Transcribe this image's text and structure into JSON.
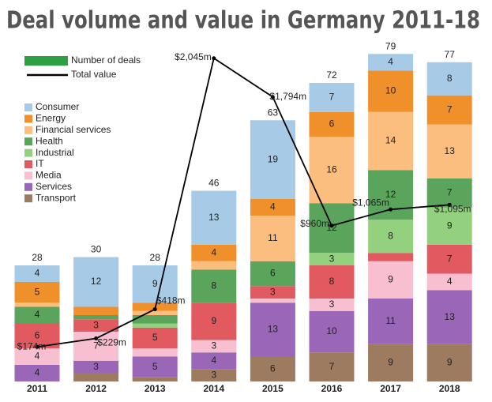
{
  "chart_data": {
    "type": "stacked-bar-line",
    "title": "Deal volume and value in Germany 2011-18",
    "bar_legend_label": "Number of deals",
    "categories": [
      "2011",
      "2012",
      "2013",
      "2014",
      "2015",
      "2016",
      "2017",
      "2018"
    ],
    "ylim": [
      0,
      80
    ],
    "y2lim": [
      -50,
      2100
    ],
    "totals": [
      28,
      30,
      28,
      46,
      63,
      72,
      79,
      77
    ],
    "series": [
      {
        "name": "Transport",
        "color": "#9c7b61",
        "values": [
          0,
          2,
          1,
          3,
          6,
          7,
          9,
          9
        ]
      },
      {
        "name": "Services",
        "color": "#9a66b8",
        "values": [
          4,
          3,
          5,
          4,
          13,
          10,
          11,
          13
        ]
      },
      {
        "name": "Media",
        "color": "#f7bfd0",
        "values": [
          4,
          7,
          2,
          3,
          1,
          3,
          9,
          4
        ]
      },
      {
        "name": "IT",
        "color": "#e05a60",
        "values": [
          6,
          3,
          5,
          9,
          3,
          8,
          2,
          7
        ]
      },
      {
        "name": "Industrial",
        "color": "#93d17e",
        "values": [
          0,
          0,
          1,
          0,
          0,
          3,
          8,
          9
        ]
      },
      {
        "name": "Health",
        "color": "#5aa45b",
        "values": [
          4,
          1,
          2,
          8,
          6,
          12,
          12,
          7
        ]
      },
      {
        "name": "Financial services",
        "color": "#fbbe7e",
        "values": [
          1,
          0,
          1,
          2,
          11,
          16,
          14,
          13
        ]
      },
      {
        "name": "Energy",
        "color": "#f0902b",
        "values": [
          5,
          2,
          2,
          4,
          4,
          6,
          10,
          7
        ]
      },
      {
        "name": "Consumer",
        "color": "#a7cbe6",
        "values": [
          4,
          12,
          9,
          13,
          19,
          7,
          4,
          8
        ]
      }
    ],
    "line": {
      "name": "Total value",
      "color": "#000000",
      "axis": "y2",
      "values": [
        174,
        229,
        418,
        2045,
        1794,
        960,
        1065,
        1095
      ],
      "value_labels": [
        "$174m",
        "$229m",
        "$418m",
        "$2,045m",
        "$1,794m",
        "$960m",
        "$1,065m",
        "$1,095m"
      ]
    }
  }
}
